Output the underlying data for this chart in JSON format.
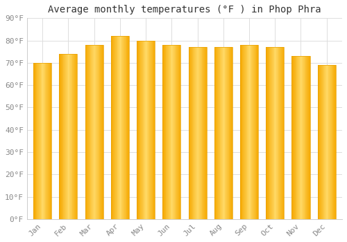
{
  "title": "Average monthly temperatures (°F ) in Phop Phra",
  "months": [
    "Jan",
    "Feb",
    "Mar",
    "Apr",
    "May",
    "Jun",
    "Jul",
    "Aug",
    "Sep",
    "Oct",
    "Nov",
    "Dec"
  ],
  "values": [
    70,
    74,
    78,
    82,
    80,
    78,
    77,
    77,
    78,
    77,
    73,
    69
  ],
  "bar_color_left": "#F5A800",
  "bar_color_center": "#FFD966",
  "bar_color_right": "#F5A800",
  "background_color": "#FFFFFF",
  "grid_color": "#DDDDDD",
  "ylim": [
    0,
    90
  ],
  "yticks": [
    0,
    10,
    20,
    30,
    40,
    50,
    60,
    70,
    80,
    90
  ],
  "ytick_labels": [
    "0°F",
    "10°F",
    "20°F",
    "30°F",
    "40°F",
    "50°F",
    "60°F",
    "70°F",
    "80°F",
    "90°F"
  ],
  "title_fontsize": 10,
  "tick_fontsize": 8,
  "font_family": "monospace",
  "bar_width": 0.7
}
